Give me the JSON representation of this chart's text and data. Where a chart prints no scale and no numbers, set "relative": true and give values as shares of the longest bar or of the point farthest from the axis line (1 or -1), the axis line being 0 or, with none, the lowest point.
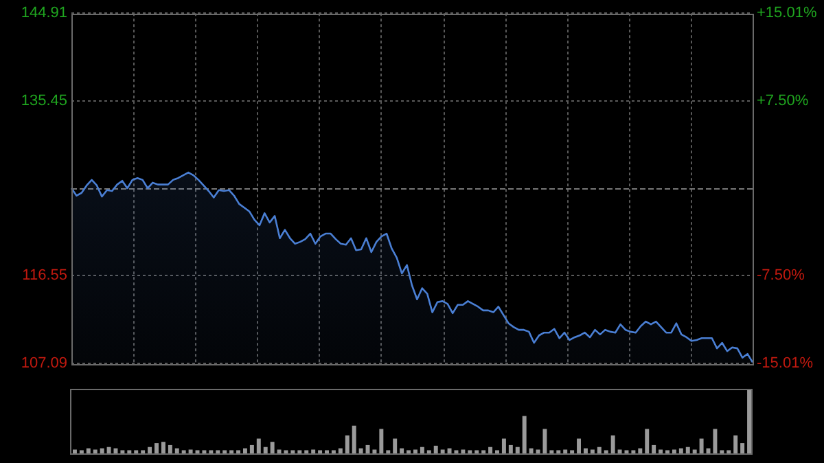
{
  "chart_data": [
    {
      "type": "area",
      "categories": [
        null,
        null,
        null,
        null,
        null,
        null,
        null,
        null,
        null,
        null,
        null,
        null,
        null,
        null,
        null,
        null,
        null,
        null,
        null,
        null,
        null,
        null,
        null,
        null,
        null,
        null,
        null,
        null,
        null,
        null,
        null,
        null,
        null,
        null,
        null,
        null,
        null,
        null,
        null,
        null,
        null,
        null,
        null,
        null,
        null,
        null,
        null,
        null,
        null,
        null,
        null,
        null,
        null,
        null,
        null,
        null,
        null,
        null,
        null,
        null,
        null,
        null,
        null,
        null,
        null,
        null,
        null,
        null,
        null,
        null,
        null,
        null,
        null,
        null,
        null,
        null,
        null,
        null,
        null,
        null,
        null,
        null,
        null,
        null,
        null,
        null,
        null,
        null,
        null,
        null,
        null,
        null,
        null,
        null,
        null,
        null,
        null,
        null,
        null,
        null,
        null,
        null,
        null,
        null,
        null,
        null,
        null,
        null,
        null,
        null,
        null,
        null,
        null,
        null,
        null,
        null,
        null,
        null,
        null,
        null,
        null,
        null,
        null,
        null,
        null,
        null,
        null,
        null,
        null,
        null,
        null,
        null,
        null,
        null,
        null
      ],
      "series": [
        {
          "color": "#4a7fd4",
          "values": [
            126.0,
            125.2,
            125.5,
            126.3,
            126.9,
            126.3,
            125.1,
            125.8,
            125.7,
            126.4,
            126.8,
            126.0,
            126.9,
            127.1,
            126.9,
            126.0,
            126.6,
            126.4,
            126.4,
            126.4,
            126.9,
            127.1,
            127.4,
            127.7,
            127.4,
            126.9,
            126.3,
            125.7,
            125.0,
            125.8,
            125.7,
            125.8,
            125.2,
            124.3,
            123.9,
            123.5,
            122.6,
            122.0,
            123.3,
            122.3,
            123.0,
            120.6,
            121.5,
            120.6,
            120.0,
            120.2,
            120.5,
            121.1,
            120.0,
            120.8,
            121.1,
            121.1,
            120.5,
            120.0,
            119.9,
            120.6,
            119.3,
            119.4,
            120.6,
            119.1,
            120.2,
            120.8,
            121.1,
            119.5,
            118.5,
            116.8,
            117.7,
            115.5,
            114.0,
            115.2,
            114.6,
            112.6,
            113.7,
            113.8,
            113.5,
            112.5,
            113.4,
            113.4,
            113.8,
            113.5,
            113.2,
            112.8,
            112.8,
            112.6,
            113.2,
            112.3,
            111.4,
            111.0,
            110.7,
            110.7,
            110.5,
            109.3,
            110.1,
            110.4,
            110.4,
            110.8,
            109.8,
            110.4,
            109.6,
            109.9,
            110.1,
            110.4,
            109.9,
            110.7,
            110.2,
            110.7,
            110.5,
            110.4,
            111.3,
            110.7,
            110.5,
            110.4,
            111.1,
            111.6,
            111.3,
            111.6,
            111.0,
            110.4,
            110.4,
            111.4,
            110.2,
            109.9,
            109.5,
            109.6,
            109.8,
            109.8,
            109.8,
            108.7,
            109.3,
            108.4,
            108.8,
            108.7,
            107.7,
            108.1,
            107.2
          ]
        }
      ],
      "ylim": [
        107.09,
        144.91
      ],
      "yticks": [
        144.91,
        135.45,
        116.55,
        107.09
      ],
      "y2lim": [
        -15.01,
        15.01
      ],
      "y2ticks": [
        {
          "value": 15.01,
          "label": "+15.01%"
        },
        {
          "value": 7.5,
          "label": "+7.50%"
        },
        {
          "value": -7.5,
          "label": "-7.50%"
        },
        {
          "value": -15.01,
          "label": "-15.01%"
        }
      ],
      "ref_lines": [
        {
          "axis": "y",
          "value": 126.0,
          "line_style": "dashed",
          "color": "#777777"
        }
      ],
      "grid": true
    },
    {
      "type": "bar",
      "relative": true,
      "color": "#9a9a9a",
      "categories": [
        null,
        null,
        null,
        null,
        null,
        null,
        null,
        null,
        null,
        null,
        null,
        null,
        null,
        null,
        null,
        null,
        null,
        null,
        null,
        null,
        null,
        null,
        null,
        null,
        null,
        null,
        null,
        null,
        null,
        null,
        null,
        null,
        null,
        null,
        null,
        null,
        null,
        null,
        null,
        null,
        null,
        null,
        null,
        null,
        null,
        null,
        null,
        null,
        null,
        null,
        null,
        null,
        null,
        null,
        null,
        null,
        null,
        null,
        null,
        null,
        null,
        null,
        null,
        null,
        null,
        null,
        null,
        null,
        null,
        null,
        null,
        null,
        null,
        null,
        null,
        null,
        null,
        null,
        null,
        null,
        null,
        null,
        null,
        null,
        null,
        null,
        null,
        null,
        null,
        null,
        null,
        null,
        null,
        null,
        null,
        null,
        null,
        null,
        null,
        null
      ],
      "values": [
        0.08,
        0.07,
        0.1,
        0.08,
        0.1,
        0.12,
        0.1,
        0.07,
        0.07,
        0.07,
        0.07,
        0.12,
        0.18,
        0.2,
        0.15,
        0.1,
        0.07,
        0.08,
        0.07,
        0.07,
        0.07,
        0.07,
        0.07,
        0.07,
        0.07,
        0.1,
        0.15,
        0.25,
        0.12,
        0.2,
        0.08,
        0.07,
        0.07,
        0.07,
        0.07,
        0.08,
        0.07,
        0.07,
        0.07,
        0.1,
        0.3,
        0.45,
        0.1,
        0.15,
        0.08,
        0.4,
        0.07,
        0.25,
        0.1,
        0.07,
        0.08,
        0.12,
        0.07,
        0.14,
        0.08,
        0.1,
        0.07,
        0.08,
        0.07,
        0.07,
        0.07,
        0.12,
        0.07,
        0.25,
        0.15,
        0.12,
        0.6,
        0.1,
        0.08,
        0.4,
        0.07,
        0.07,
        0.08,
        0.07,
        0.25,
        0.1,
        0.08,
        0.12,
        0.07,
        0.3,
        0.08,
        0.07,
        0.07,
        0.1,
        0.4,
        0.15,
        0.08,
        0.07,
        0.08,
        0.1,
        0.12,
        0.08,
        0.25,
        0.1,
        0.4,
        0.07,
        0.07,
        0.3,
        0.18,
        1.0
      ]
    }
  ]
}
